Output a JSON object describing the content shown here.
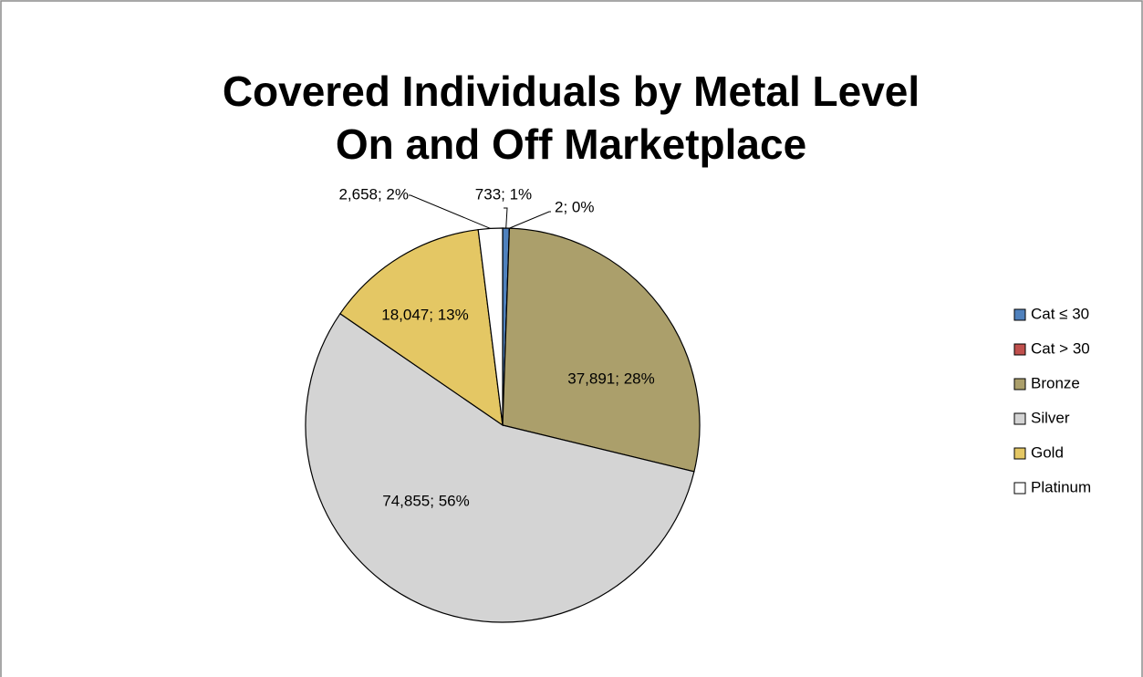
{
  "chart_data": {
    "type": "pie",
    "title": [
      "Covered Individuals by Metal Level",
      "On and Off Marketplace"
    ],
    "categories": [
      "Cat ≤ 30",
      "Cat > 30",
      "Bronze",
      "Silver",
      "Gold",
      "Platinum"
    ],
    "values": [
      733,
      2,
      37891,
      74855,
      18047,
      2658
    ],
    "value_labels": [
      "733; 1%",
      "2; 0%",
      "37,891; 28%",
      "74,855; 56%",
      "18,047; 13%",
      "2,658; 2%"
    ],
    "colors": [
      "#4f81bd",
      "#c0504d",
      "#ab9f6b",
      "#d4d4d4",
      "#e4c764",
      "#ffffff"
    ],
    "legend": "right"
  }
}
